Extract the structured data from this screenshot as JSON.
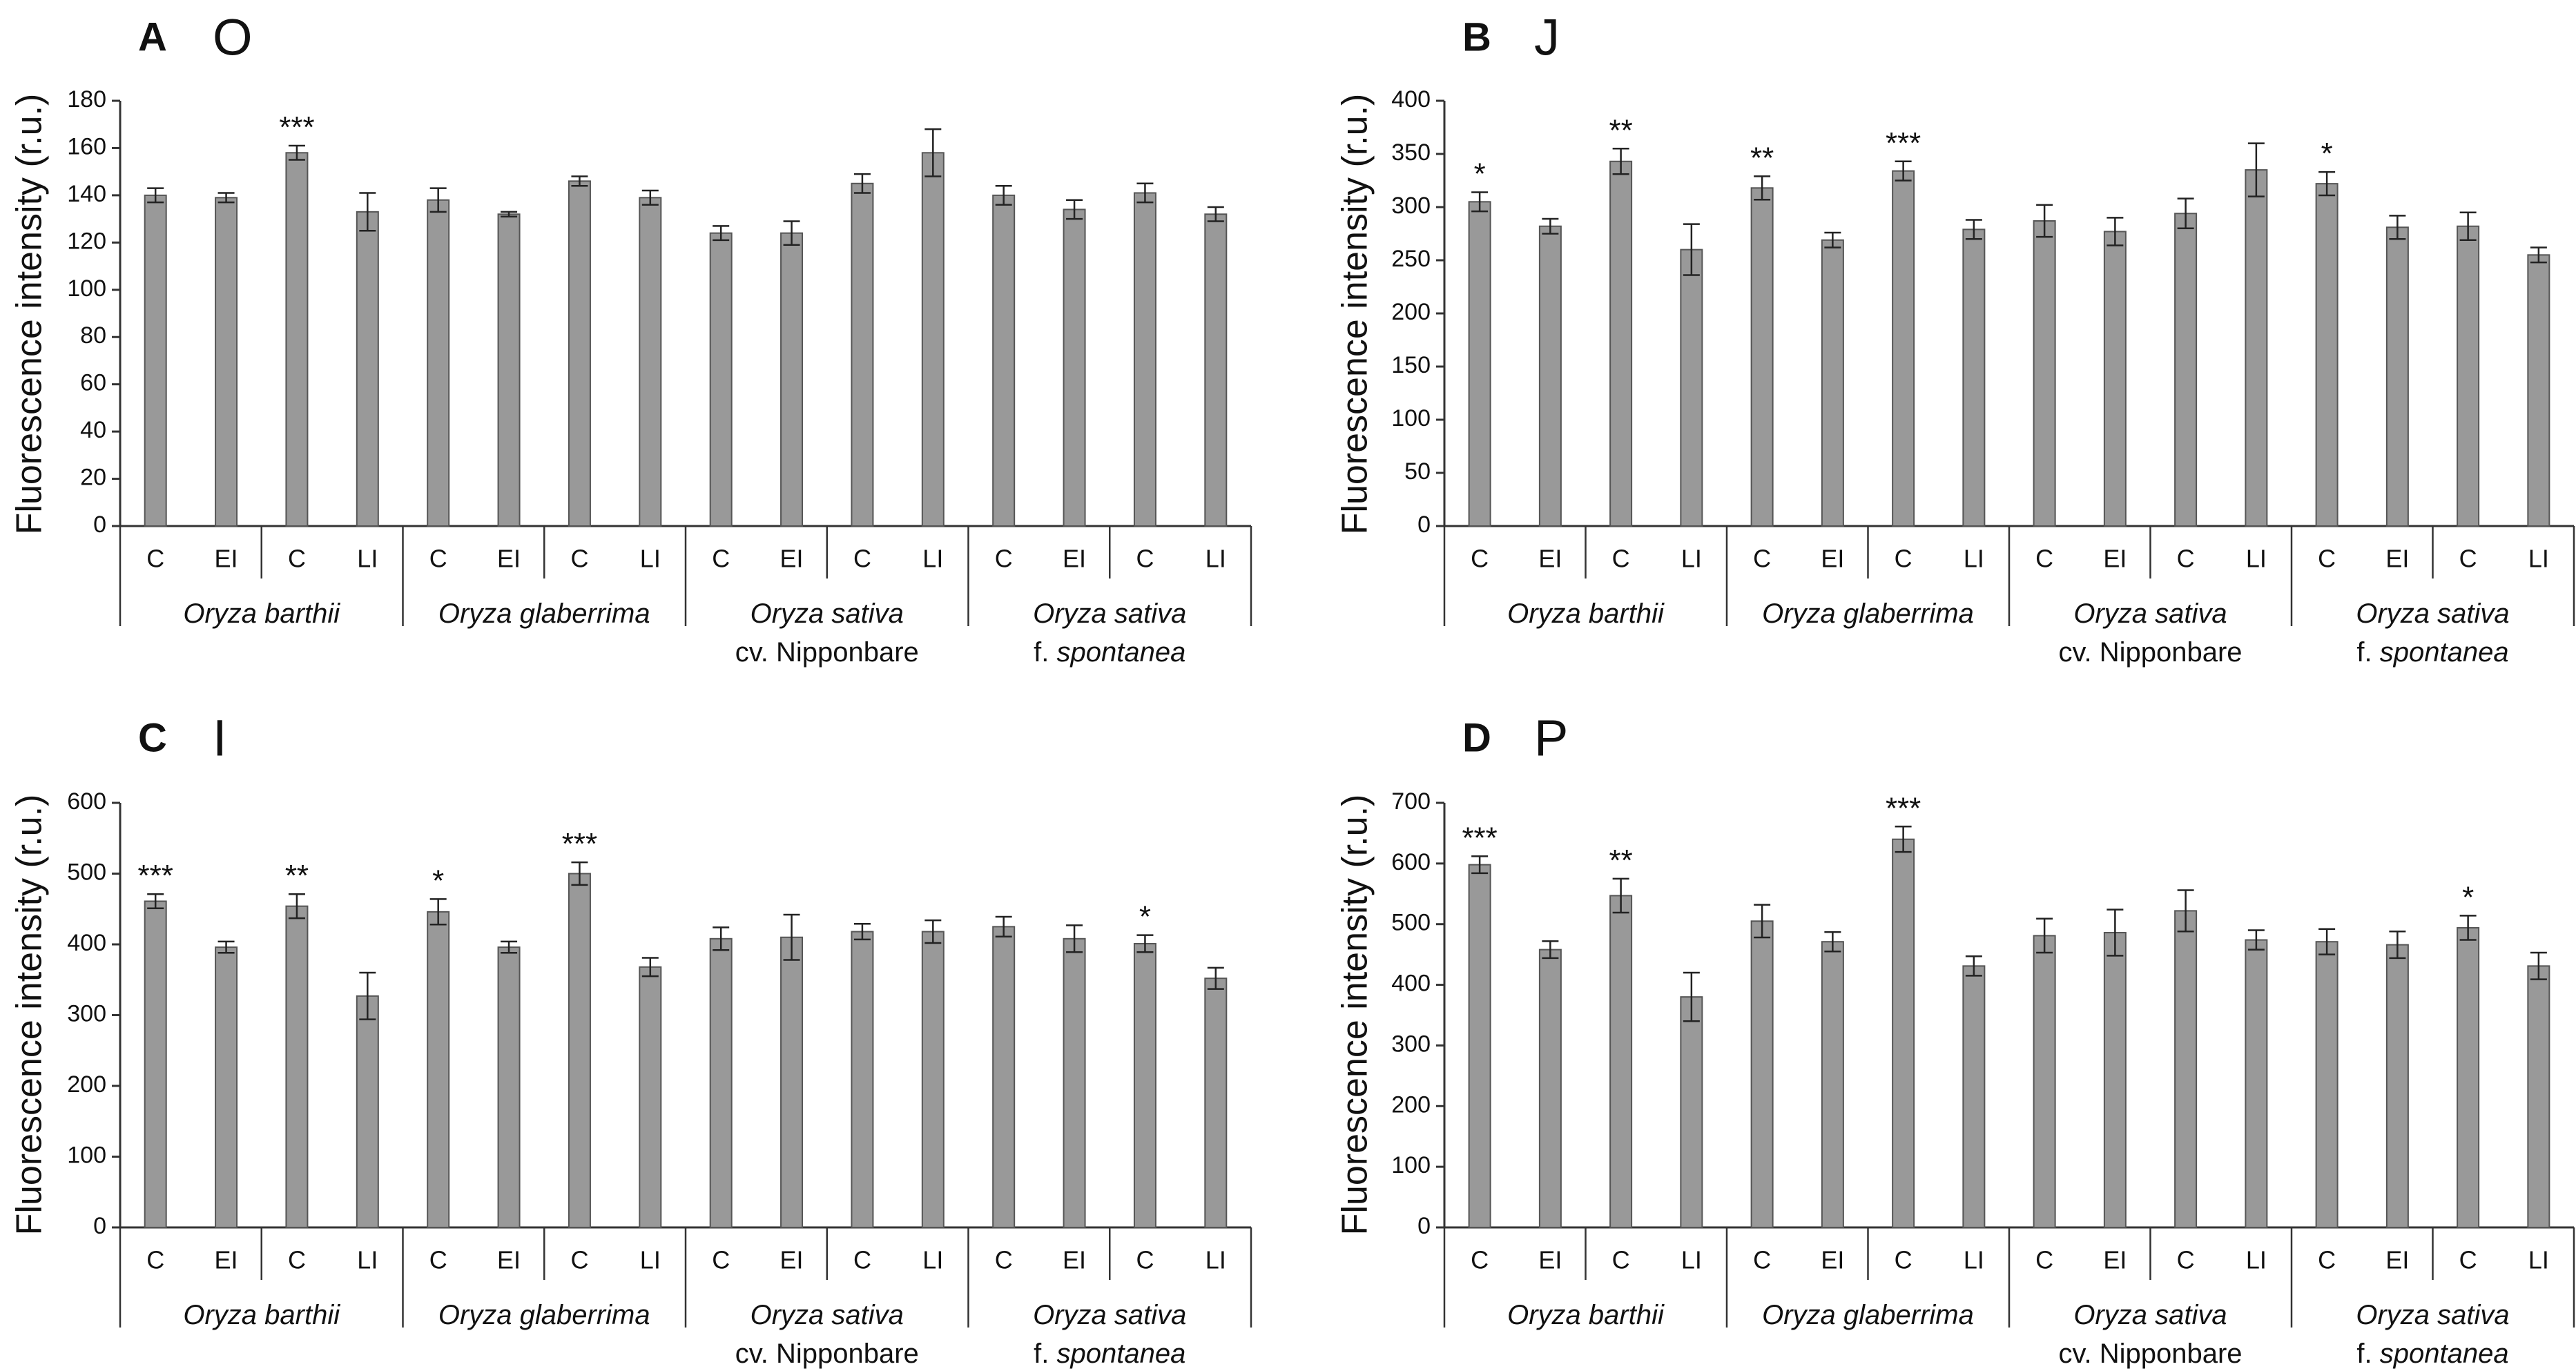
{
  "figure": {
    "ylabel": "Fluorescence intensity (r.u.)",
    "x_tick_labels": [
      "C",
      "EI",
      "C",
      "LI",
      "C",
      "EI",
      "C",
      "LI",
      "C",
      "EI",
      "C",
      "LI",
      "C",
      "EI",
      "C",
      "LI"
    ],
    "groups": [
      {
        "name": "Oryza barthii",
        "name_italic": "Oryza barthii",
        "sub_prefix": "",
        "sub_italic": ""
      },
      {
        "name": "Oryza glaberrima",
        "name_italic": "Oryza glaberrima",
        "sub_prefix": "",
        "sub_italic": ""
      },
      {
        "name": "Oryza sativa",
        "name_italic": "Oryza sativa",
        "sub_prefix": "cv. Nipponbare",
        "sub_italic": ""
      },
      {
        "name": "Oryza sativa",
        "name_italic": "Oryza sativa",
        "sub_prefix": "f. ",
        "sub_italic": "spontanea"
      }
    ],
    "colors": {
      "bar": "#999999",
      "axis": "#333333",
      "text": "#111111"
    }
  },
  "chart_data": [
    {
      "type": "bar",
      "panel": "A",
      "title": "O",
      "ylabel": "Fluorescence intensity (r.u.)",
      "ylim": [
        0,
        180
      ],
      "yticks": [
        0,
        20,
        40,
        60,
        80,
        100,
        120,
        140,
        160,
        180
      ],
      "categories": [
        "C",
        "EI",
        "C",
        "LI",
        "C",
        "EI",
        "C",
        "LI",
        "C",
        "EI",
        "C",
        "LI",
        "C",
        "EI",
        "C",
        "LI"
      ],
      "values": [
        140,
        139,
        158,
        133,
        138,
        132,
        146,
        139,
        124,
        124,
        145,
        158,
        140,
        134,
        141,
        132
      ],
      "errors": [
        3,
        2,
        3,
        8,
        5,
        1,
        2,
        3,
        3,
        5,
        4,
        10,
        4,
        4,
        4,
        3
      ],
      "significance": [
        "",
        "",
        "***",
        "",
        "",
        "",
        "",
        "",
        "",
        "",
        "",
        "",
        "",
        "",
        "",
        ""
      ]
    },
    {
      "type": "bar",
      "panel": "B",
      "title": "J",
      "ylabel": "Fluorescence intensity (r.u.)",
      "ylim": [
        0,
        400
      ],
      "yticks": [
        0,
        50,
        100,
        150,
        200,
        250,
        300,
        350,
        400
      ],
      "categories": [
        "C",
        "EI",
        "C",
        "LI",
        "C",
        "EI",
        "C",
        "LI",
        "C",
        "EI",
        "C",
        "LI",
        "C",
        "EI",
        "C",
        "LI"
      ],
      "values": [
        305,
        282,
        343,
        260,
        318,
        269,
        334,
        279,
        287,
        277,
        294,
        335,
        322,
        281,
        282,
        255
      ],
      "errors": [
        9,
        7,
        12,
        24,
        11,
        7,
        9,
        9,
        15,
        13,
        14,
        25,
        11,
        11,
        13,
        7
      ],
      "significance": [
        "*",
        "",
        "**",
        "",
        "**",
        "",
        "***",
        "",
        "",
        "",
        "",
        "",
        "*",
        "",
        "",
        ""
      ]
    },
    {
      "type": "bar",
      "panel": "C",
      "title": "I",
      "ylabel": "Fluorescence intensity (r.u.)",
      "ylim": [
        0,
        600
      ],
      "yticks": [
        0,
        100,
        200,
        300,
        400,
        500,
        600
      ],
      "categories": [
        "C",
        "EI",
        "C",
        "LI",
        "C",
        "EI",
        "C",
        "LI",
        "C",
        "EI",
        "C",
        "LI",
        "C",
        "EI",
        "C",
        "LI"
      ],
      "values": [
        461,
        396,
        454,
        327,
        446,
        396,
        500,
        368,
        408,
        410,
        418,
        418,
        425,
        408,
        401,
        352
      ],
      "errors": [
        10,
        8,
        17,
        33,
        18,
        8,
        16,
        13,
        16,
        32,
        11,
        16,
        14,
        19,
        12,
        15
      ],
      "significance": [
        "***",
        "",
        "**",
        "",
        "*",
        "",
        "***",
        "",
        "",
        "",
        "",
        "",
        "",
        "",
        "*",
        ""
      ]
    },
    {
      "type": "bar",
      "panel": "D",
      "title": "P",
      "ylabel": "Fluorescence intensity (r.u.)",
      "ylim": [
        0,
        700
      ],
      "yticks": [
        0,
        100,
        200,
        300,
        400,
        500,
        600,
        700
      ],
      "categories": [
        "C",
        "EI",
        "C",
        "LI",
        "C",
        "EI",
        "C",
        "LI",
        "C",
        "EI",
        "C",
        "LI",
        "C",
        "EI",
        "C",
        "LI"
      ],
      "values": [
        598,
        458,
        547,
        380,
        505,
        471,
        640,
        431,
        481,
        486,
        522,
        474,
        471,
        466,
        494,
        431
      ],
      "errors": [
        14,
        14,
        28,
        40,
        27,
        16,
        21,
        16,
        28,
        38,
        34,
        16,
        21,
        22,
        20,
        22
      ],
      "significance": [
        "***",
        "",
        "**",
        "",
        "",
        "",
        "***",
        "",
        "",
        "",
        "",
        "",
        "",
        "",
        "*",
        ""
      ]
    }
  ]
}
